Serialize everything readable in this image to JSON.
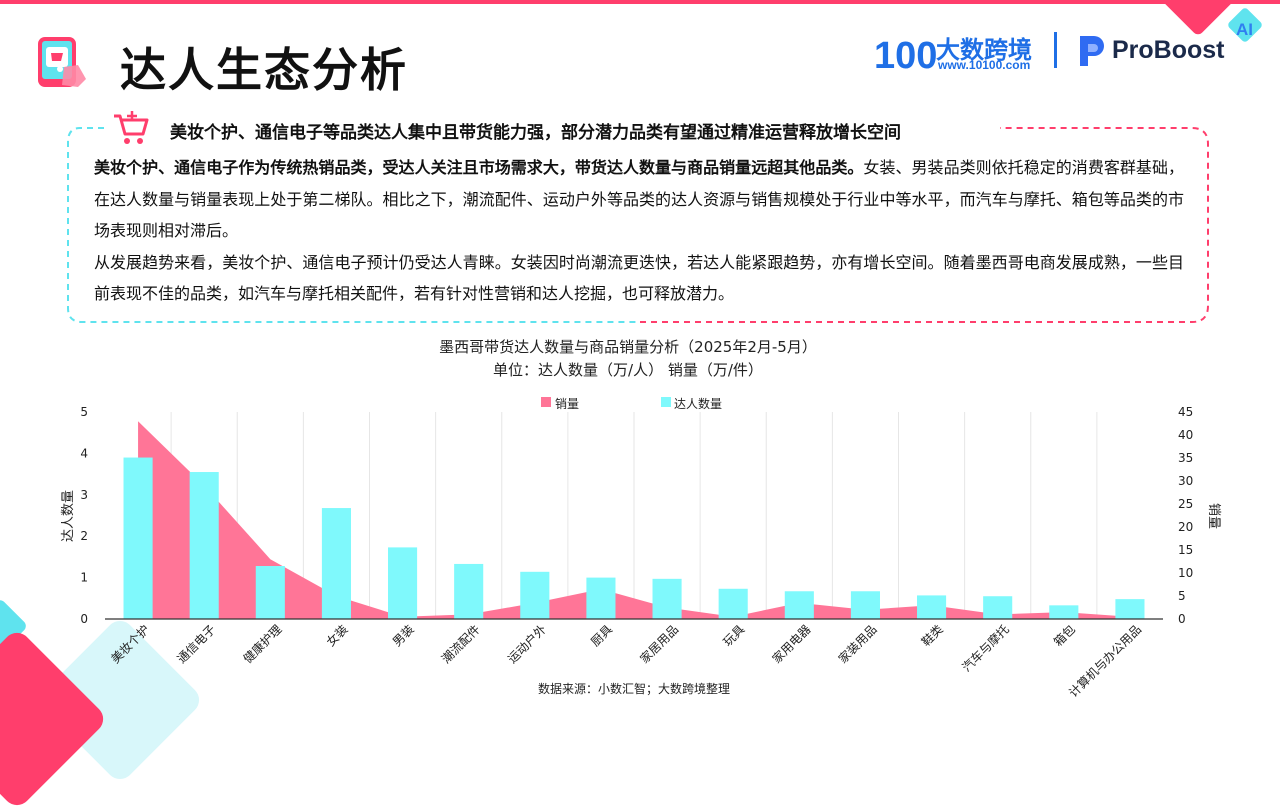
{
  "page": {
    "title": "达人生态分析"
  },
  "brand": {
    "name": "大数跨境",
    "url": "www.10100.com",
    "number_mark": "100",
    "partner": "ProBoost",
    "badge": "AI"
  },
  "summary": {
    "headline": "美妆个护、通信电子等品类达人集中且带货能力强，部分潜力品类有望通过精准运营释放增长空间",
    "p1_bold": "美妆个护、通信电子作为传统热销品类，受达人关注且市场需求大，带货达人数量与商品销量远超其他品类。",
    "p1_rest": "女装、男装品类则依托稳定的消费客群基础，在达人数量与销量表现上处于第二梯队。相比之下，潮流配件、运动户外等品类的达人资源与销售规模处于行业中等水平，而汽车与摩托、箱包等品类的市场表现则相对滞后。",
    "p2": "从发展趋势来看，美妆个护、通信电子预计仍受达人青睐。女装因时尚潮流更迭快，若达人能紧跟趋势，亦有增长空间。随着墨西哥电商发展成熟，一些目前表现不佳的品类，如汽车与摩托相关配件，若有针对性营销和达人挖掘，也可释放潜力。"
  },
  "chart_data": {
    "type": "bar",
    "title": "墨西哥带货达人数量与商品销量分析（2025年2月-5月）",
    "subtitle": "单位：达人数量（万/人）   销量（万/件）",
    "source": "数据来源：小数汇智；大数跨境整理",
    "categories": [
      "美妆个护",
      "通信电子",
      "健康护理",
      "女装",
      "男装",
      "潮流配件",
      "运动户外",
      "厨具",
      "家居用品",
      "玩具",
      "家用电器",
      "家装用品",
      "鞋类",
      "汽车与摩托",
      "箱包",
      "计算机与办公用品"
    ],
    "series": [
      {
        "name": "销量",
        "chart": "area",
        "axis": "right",
        "color": "#ff7597",
        "values": [
          43,
          29,
          13,
          5,
          0.5,
          1,
          3.5,
          6.5,
          2.5,
          0.5,
          3.5,
          2,
          3,
          1,
          1.5,
          0.5
        ]
      },
      {
        "name": "达人数量",
        "chart": "bar",
        "axis": "left",
        "color": "#7ff9fc",
        "values": [
          3.9,
          3.55,
          1.28,
          2.68,
          1.73,
          1.33,
          1.14,
          1.0,
          0.97,
          0.73,
          0.67,
          0.67,
          0.57,
          0.55,
          0.33,
          0.48
        ]
      }
    ],
    "ylabel": "达人数量",
    "ylim": [
      0,
      5
    ],
    "yticks": [
      0,
      1,
      2,
      3,
      4,
      5
    ],
    "y2label": "销量",
    "y2lim": [
      0,
      45
    ],
    "y2ticks": [
      0,
      5,
      10,
      15,
      20,
      25,
      30,
      35,
      40,
      45
    ],
    "grid": "vertical",
    "legend": "top-center"
  }
}
